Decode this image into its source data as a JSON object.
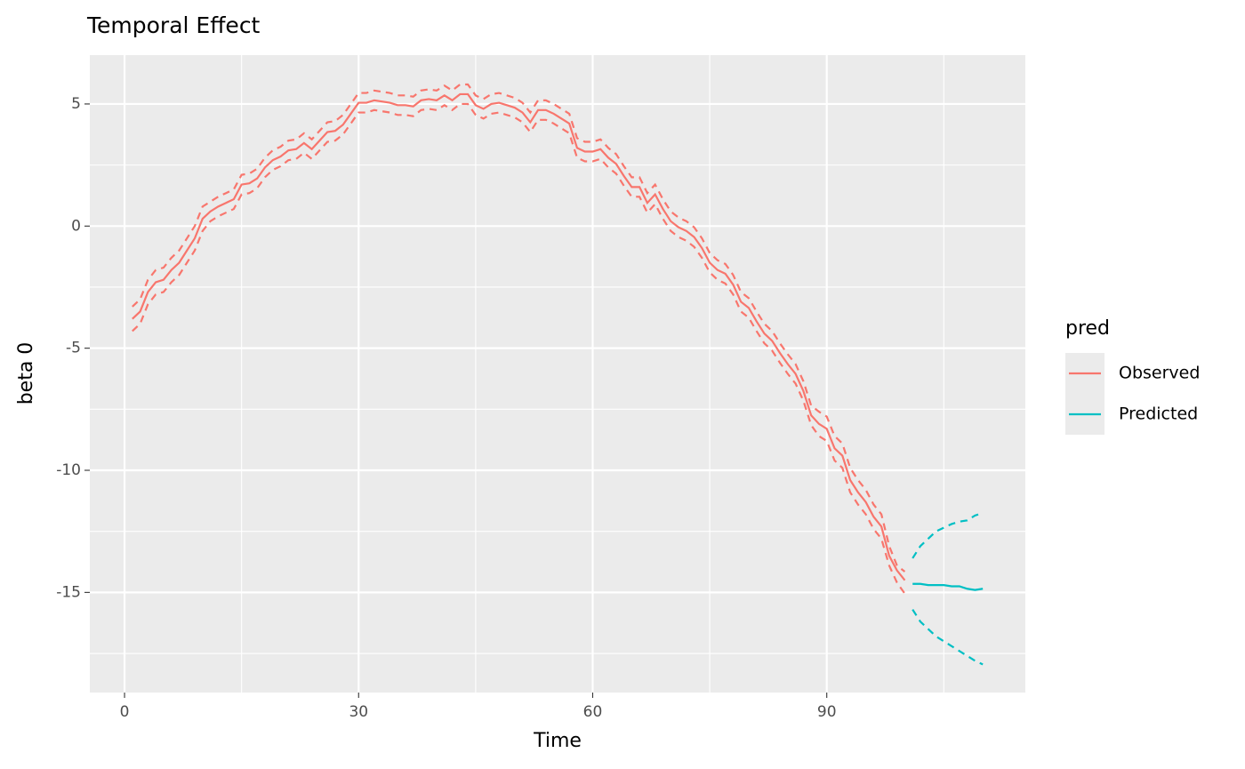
{
  "chart_data": {
    "type": "line",
    "title": "Temporal Effect",
    "x_label": "Time",
    "y_label": "beta 0",
    "legend_title": "pred",
    "legend_position": "right",
    "grid": true,
    "xlim": [
      -4.45,
      115.45
    ],
    "ylim": [
      -19.1,
      7.0
    ],
    "xticks": [
      0,
      30,
      60,
      90
    ],
    "yticks": [
      -15,
      -10,
      -5,
      0,
      5
    ],
    "x_minor_breaks": [
      15,
      45,
      75,
      105
    ],
    "y_minor_breaks": [
      -17.5,
      -12.5,
      -7.5,
      -2.5,
      2.5
    ],
    "series": [
      {
        "name": "Observed",
        "color": "#f8766d",
        "x": [
          1,
          2,
          3,
          4,
          5,
          6,
          7,
          8,
          9,
          10,
          11,
          12,
          13,
          14,
          15,
          16,
          17,
          18,
          19,
          20,
          21,
          22,
          23,
          24,
          25,
          26,
          27,
          28,
          29,
          30,
          31,
          32,
          33,
          34,
          35,
          36,
          37,
          38,
          39,
          40,
          41,
          42,
          43,
          44,
          45,
          46,
          47,
          48,
          49,
          50,
          51,
          52,
          53,
          54,
          55,
          56,
          57,
          58,
          59,
          60,
          61,
          62,
          63,
          64,
          65,
          66,
          67,
          68,
          69,
          70,
          71,
          72,
          73,
          74,
          75,
          76,
          77,
          78,
          79,
          80,
          81,
          82,
          83,
          84,
          85,
          86,
          87,
          88,
          89,
          90,
          91,
          92,
          93,
          94,
          95,
          96,
          97,
          98,
          99,
          100
        ],
        "values": [
          -3.8,
          -3.5,
          -2.7,
          -2.3,
          -2.2,
          -1.8,
          -1.5,
          -1.0,
          -0.5,
          0.3,
          0.6,
          0.8,
          0.95,
          1.1,
          1.7,
          1.75,
          1.95,
          2.4,
          2.7,
          2.85,
          3.1,
          3.15,
          3.4,
          3.15,
          3.5,
          3.85,
          3.9,
          4.15,
          4.6,
          5.05,
          5.05,
          5.15,
          5.1,
          5.05,
          4.95,
          4.95,
          4.9,
          5.15,
          5.2,
          5.15,
          5.35,
          5.15,
          5.4,
          5.4,
          4.95,
          4.8,
          5.0,
          5.05,
          4.95,
          4.85,
          4.65,
          4.25,
          4.75,
          4.75,
          4.6,
          4.4,
          4.2,
          3.2,
          3.05,
          3.05,
          3.15,
          2.8,
          2.55,
          2.05,
          1.6,
          1.6,
          0.95,
          1.3,
          0.7,
          0.2,
          -0.05,
          -0.2,
          -0.45,
          -0.9,
          -1.5,
          -1.8,
          -1.95,
          -2.4,
          -3.1,
          -3.35,
          -3.9,
          -4.4,
          -4.7,
          -5.2,
          -5.65,
          -6.05,
          -6.75,
          -7.75,
          -8.1,
          -8.3,
          -9.1,
          -9.4,
          -10.4,
          -10.9,
          -11.3,
          -11.9,
          -12.3,
          -13.5,
          -14.1,
          -14.5
        ],
        "upper": [
          -3.3,
          -3.0,
          -2.2,
          -1.8,
          -1.7,
          -1.3,
          -1.0,
          -0.5,
          0,
          0.8,
          1.0,
          1.2,
          1.35,
          1.5,
          2.1,
          2.15,
          2.35,
          2.8,
          3.1,
          3.25,
          3.5,
          3.55,
          3.8,
          3.55,
          3.9,
          4.25,
          4.3,
          4.55,
          5.0,
          5.45,
          5.45,
          5.55,
          5.5,
          5.45,
          5.35,
          5.35,
          5.3,
          5.55,
          5.6,
          5.55,
          5.75,
          5.55,
          5.8,
          5.8,
          5.35,
          5.2,
          5.4,
          5.45,
          5.35,
          5.25,
          5.05,
          4.65,
          5.15,
          5.15,
          5.0,
          4.8,
          4.6,
          3.6,
          3.45,
          3.45,
          3.55,
          3.2,
          2.95,
          2.45,
          2.0,
          2.0,
          1.35,
          1.7,
          1.1,
          0.6,
          0.35,
          0.2,
          -0.05,
          -0.5,
          -1.1,
          -1.4,
          -1.55,
          -2.0,
          -2.7,
          -2.95,
          -3.5,
          -4.0,
          -4.3,
          -4.8,
          -5.25,
          -5.65,
          -6.35,
          -7.35,
          -7.6,
          -7.8,
          -8.6,
          -8.9,
          -9.9,
          -10.4,
          -10.8,
          -11.4,
          -11.8,
          -13.1,
          -13.9,
          -14.15
        ],
        "lower": [
          -4.3,
          -4.0,
          -3.2,
          -2.8,
          -2.7,
          -2.3,
          -2.0,
          -1.5,
          -1.0,
          -0.2,
          0.2,
          0.4,
          0.55,
          0.7,
          1.3,
          1.35,
          1.55,
          2.0,
          2.3,
          2.45,
          2.7,
          2.75,
          3.0,
          2.75,
          3.1,
          3.45,
          3.5,
          3.75,
          4.2,
          4.65,
          4.65,
          4.75,
          4.7,
          4.65,
          4.55,
          4.55,
          4.5,
          4.75,
          4.8,
          4.75,
          4.95,
          4.75,
          5.0,
          5.0,
          4.55,
          4.4,
          4.6,
          4.65,
          4.55,
          4.45,
          4.25,
          3.85,
          4.35,
          4.35,
          4.2,
          4.0,
          3.8,
          2.8,
          2.65,
          2.65,
          2.75,
          2.4,
          2.15,
          1.65,
          1.2,
          1.2,
          0.55,
          0.9,
          0.3,
          -0.2,
          -0.45,
          -0.6,
          -0.85,
          -1.3,
          -1.9,
          -2.2,
          -2.35,
          -2.8,
          -3.5,
          -3.75,
          -4.3,
          -4.8,
          -5.1,
          -5.6,
          -6.05,
          -6.45,
          -7.15,
          -8.15,
          -8.6,
          -8.8,
          -9.6,
          -9.9,
          -10.9,
          -11.4,
          -11.8,
          -12.4,
          -12.8,
          -13.9,
          -14.6,
          -15.05
        ]
      },
      {
        "name": "Predicted",
        "color": "#00bfc4",
        "x": [
          101,
          102,
          103,
          104,
          105,
          106,
          107,
          108,
          109,
          110
        ],
        "values": [
          -14.65,
          -14.65,
          -14.7,
          -14.7,
          -14.7,
          -14.75,
          -14.75,
          -14.85,
          -14.9,
          -14.85
        ],
        "upper": [
          -13.6,
          -13.1,
          -12.8,
          -12.5,
          -12.35,
          -12.2,
          -12.1,
          -12.05,
          -11.85,
          -11.75
        ],
        "lower": [
          -15.7,
          -16.2,
          -16.5,
          -16.8,
          -17.0,
          -17.2,
          -17.4,
          -17.6,
          -17.8,
          -17.95
        ]
      }
    ]
  }
}
